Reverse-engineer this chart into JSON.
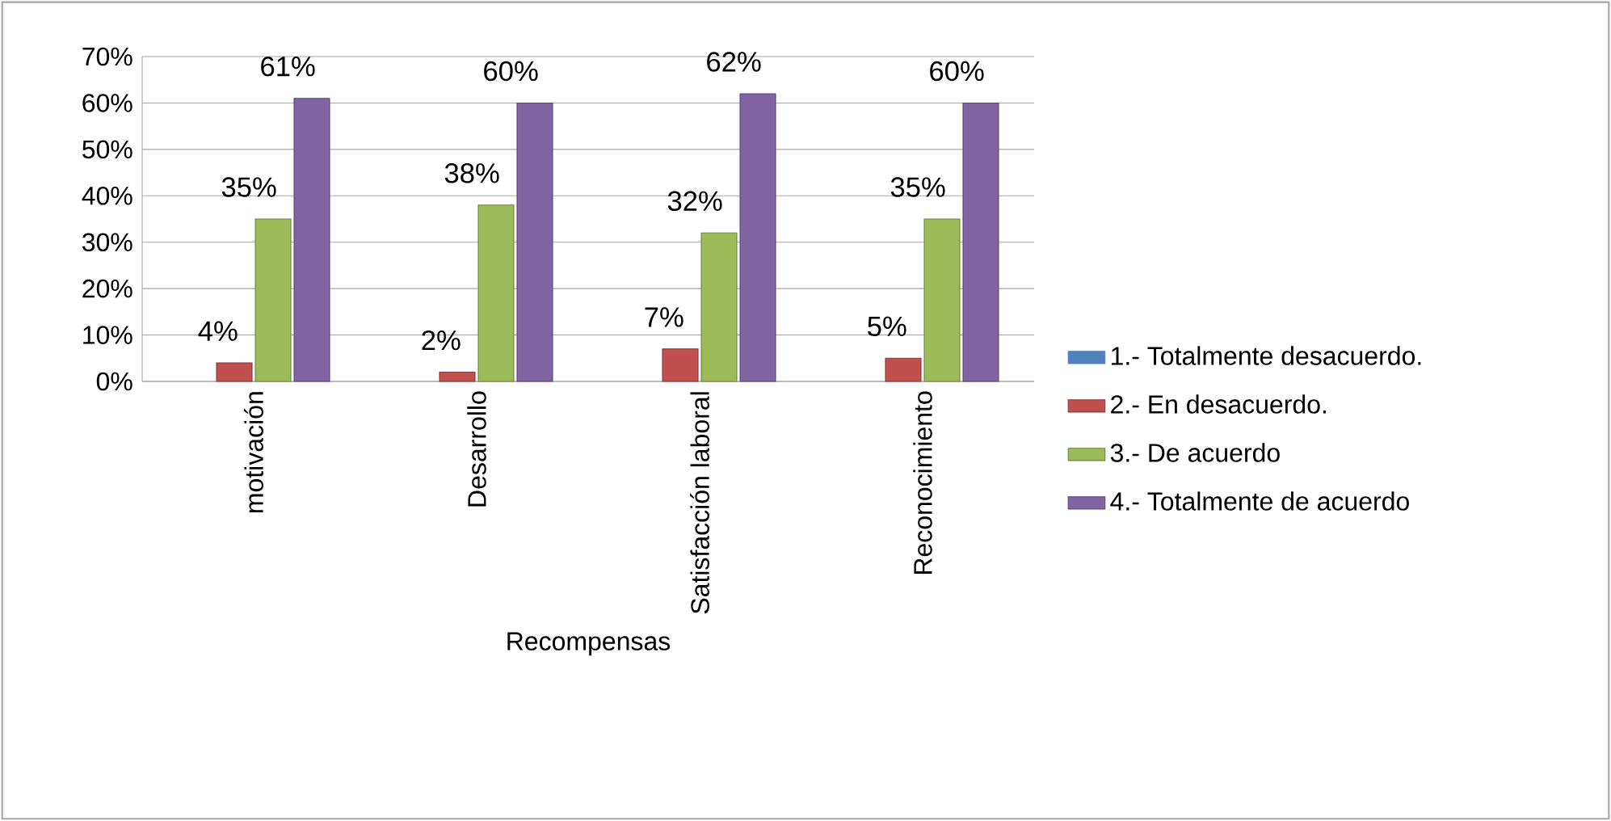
{
  "chart_data": {
    "type": "bar",
    "categories": [
      "motivación",
      "Desarrollo",
      "Satisfacción laboral",
      "Reconocimiento"
    ],
    "xlabel": "Recompensas",
    "series": [
      {
        "name": "1.- Totalmente desacuerdo.",
        "color": "#4f81bd",
        "values": [
          null,
          null,
          null,
          null
        ]
      },
      {
        "name": "2.- En desacuerdo.",
        "color": "#c0504d",
        "values": [
          4,
          2,
          7,
          5
        ],
        "value_labels": [
          "4%",
          "2%",
          "7%",
          "5%"
        ]
      },
      {
        "name": "3.- De acuerdo",
        "color": "#9bbb59",
        "values": [
          35,
          38,
          32,
          35
        ],
        "value_labels": [
          "35%",
          "38%",
          "32%",
          "35%"
        ]
      },
      {
        "name": "4.- Totalmente de acuerdo",
        "color": "#8064a2",
        "values": [
          61,
          60,
          62,
          60
        ],
        "value_labels": [
          "61%",
          "60%",
          "62%",
          "60%"
        ]
      }
    ],
    "ylim": [
      0,
      70
    ],
    "yticks": [
      {
        "value": 0,
        "label": "0%"
      },
      {
        "value": 10,
        "label": "10%"
      },
      {
        "value": 20,
        "label": "20%"
      },
      {
        "value": 30,
        "label": "30%"
      },
      {
        "value": 40,
        "label": "40%"
      },
      {
        "value": 50,
        "label": "50%"
      },
      {
        "value": 60,
        "label": "60%"
      },
      {
        "value": 70,
        "label": "70%"
      }
    ],
    "grid": "y",
    "legend": "right"
  }
}
